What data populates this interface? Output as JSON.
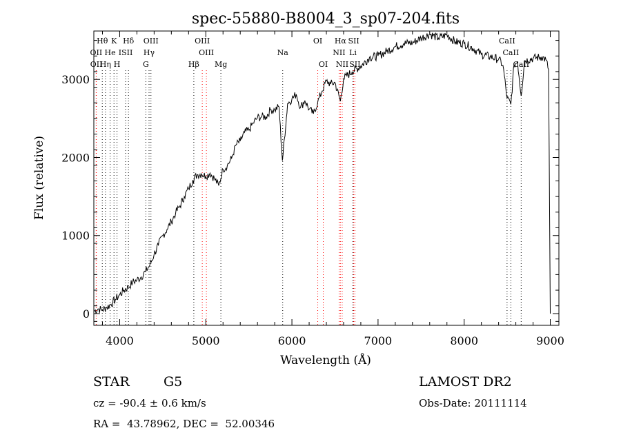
{
  "chart_data": {
    "type": "line",
    "title": "spec-55880-B8004_3_sp07-204.fits",
    "xlabel": "Wavelength (Å)",
    "ylabel": "Flux (relative)",
    "xlim": [
      3700,
      9100
    ],
    "ylim": [
      -150,
      3620
    ],
    "xticks": [
      4000,
      5000,
      6000,
      7000,
      8000,
      9000
    ],
    "yticks": [
      0,
      1000,
      2000,
      3000
    ],
    "grid": false,
    "series": [
      {
        "x": [
          3700,
          3750,
          3800,
          3850,
          3900,
          3950,
          4000,
          4050,
          4100,
          4150,
          4200,
          4250,
          4300,
          4350,
          4400,
          4450,
          4500,
          4550,
          4600,
          4650,
          4700,
          4750,
          4800,
          4850,
          4900,
          4950,
          5000,
          5050,
          5100,
          5150,
          5200,
          5250,
          5300,
          5350,
          5400,
          5450,
          5500,
          5550,
          5600,
          5650,
          5700,
          5750,
          5800,
          5850,
          5890,
          5950,
          6000,
          6050,
          6100,
          6150,
          6200,
          6250,
          6300,
          6350,
          6400,
          6450,
          6500,
          6563,
          6600,
          6700,
          6800,
          6900,
          7000,
          7100,
          7200,
          7300,
          7400,
          7500,
          7600,
          7700,
          7800,
          7900,
          8000,
          8100,
          8200,
          8300,
          8400,
          8450,
          8498,
          8542,
          8580,
          8620,
          8662,
          8700,
          8800,
          8900,
          8950,
          8980,
          9000
        ],
        "y": [
          30,
          60,
          50,
          80,
          120,
          180,
          240,
          300,
          340,
          400,
          430,
          470,
          540,
          620,
          760,
          880,
          1000,
          1080,
          1180,
          1290,
          1380,
          1500,
          1600,
          1710,
          1780,
          1790,
          1760,
          1800,
          1730,
          1640,
          1850,
          1900,
          1990,
          2160,
          2210,
          2320,
          2350,
          2440,
          2510,
          2520,
          2520,
          2610,
          2610,
          2650,
          1960,
          2690,
          2750,
          2810,
          2640,
          2730,
          2620,
          2560,
          2710,
          2850,
          2980,
          2940,
          2960,
          2720,
          3010,
          3100,
          3170,
          3280,
          3300,
          3360,
          3420,
          3460,
          3470,
          3530,
          3580,
          3530,
          3570,
          3480,
          3460,
          3400,
          3320,
          3290,
          3260,
          3180,
          2760,
          2680,
          3190,
          3230,
          2790,
          3240,
          3270,
          3290,
          3250,
          3130,
          0
        ]
      }
    ],
    "lines": [
      {
        "label": "Hθ",
        "x": 3798,
        "row": 0,
        "color": "#000000"
      },
      {
        "label": "K",
        "x": 3934,
        "row": 0,
        "color": "#000000"
      },
      {
        "label": "Hδ",
        "x": 4102,
        "row": 0,
        "color": "#000000"
      },
      {
        "label": "OIII",
        "x": 4363,
        "row": 0,
        "color": "#000000"
      },
      {
        "label": "OIII",
        "x": 4959,
        "row": 0,
        "color": "#ff0000"
      },
      {
        "label": "OI",
        "x": 6300,
        "row": 0,
        "color": "#ff0000"
      },
      {
        "label": "Hα",
        "x": 6563,
        "row": 0,
        "color": "#ff0000"
      },
      {
        "label": "SII",
        "x": 6717,
        "row": 0,
        "color": "#ff0000"
      },
      {
        "label": "CaII",
        "x": 8498,
        "row": 0,
        "color": "#000000"
      },
      {
        "label": "OII",
        "x": 3727,
        "row": 1,
        "color": "#ff0000"
      },
      {
        "label": "He",
        "x": 3889,
        "row": 1,
        "color": "#000000"
      },
      {
        "label": "ISII",
        "x": 4069,
        "row": 1,
        "color": "#000000"
      },
      {
        "label": "Hγ",
        "x": 4341,
        "row": 1,
        "color": "#000000"
      },
      {
        "label": "OIII",
        "x": 5007,
        "row": 1,
        "color": "#ff0000"
      },
      {
        "label": "Na",
        "x": 5893,
        "row": 1,
        "color": "#000000"
      },
      {
        "label": "NII",
        "x": 6548,
        "row": 1,
        "color": "#ff0000"
      },
      {
        "label": "Li",
        "x": 6708,
        "row": 1,
        "color": "#000000"
      },
      {
        "label": "CaII",
        "x": 8542,
        "row": 1,
        "color": "#000000"
      },
      {
        "label": "OII",
        "x": 3729,
        "row": 2,
        "color": "#ff0000"
      },
      {
        "label": "Hη",
        "x": 3835,
        "row": 2,
        "color": "#000000"
      },
      {
        "label": "H",
        "x": 3969,
        "row": 2,
        "color": "#000000"
      },
      {
        "label": "G",
        "x": 4304,
        "row": 2,
        "color": "#000000"
      },
      {
        "label": "Hβ",
        "x": 4861,
        "row": 2,
        "color": "#000000"
      },
      {
        "label": "Mg",
        "x": 5175,
        "row": 2,
        "color": "#000000"
      },
      {
        "label": "OI",
        "x": 6364,
        "row": 2,
        "color": "#ff0000"
      },
      {
        "label": "NII",
        "x": 6584,
        "row": 2,
        "color": "#ff0000"
      },
      {
        "label": "SII",
        "x": 6731,
        "row": 2,
        "color": "#ff0000"
      },
      {
        "label": "CaII",
        "x": 8662,
        "row": 2,
        "color": "#000000"
      }
    ]
  },
  "info": {
    "class_label": "STAR",
    "subclass": "G5",
    "survey": "LAMOST DR2",
    "velocity": "cz = -90.4 ± 0.6 km/s",
    "obs_date": "Obs-Date: 20111114",
    "coords": "RA =  43.78962, DEC =  52.00346"
  }
}
